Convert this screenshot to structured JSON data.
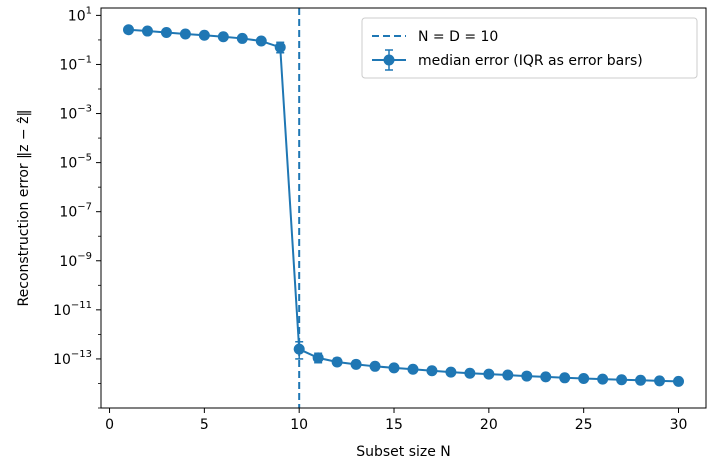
{
  "chart_data": {
    "type": "line",
    "xlabel": "Subset size N",
    "ylabel": "Reconstruction error ‖z − ẑ‖",
    "yscale": "log",
    "xlim": [
      -0.45,
      31.45
    ],
    "ylim": [
      1e-15,
      20
    ],
    "x_ticks": [
      0,
      5,
      10,
      15,
      20,
      25,
      30
    ],
    "y_tick_exponents": [
      1,
      -1,
      -3,
      -5,
      -7,
      -9,
      -11,
      -13
    ],
    "grid": false,
    "legend_position": "top-right",
    "vline": {
      "x": 10,
      "label": "N = D = 10",
      "style": "dashed"
    },
    "series": [
      {
        "name": "median error (IQR as error bars)",
        "color": "#1f77b4",
        "marker": "circle",
        "x": [
          1,
          2,
          3,
          4,
          5,
          6,
          7,
          8,
          9,
          10,
          11,
          12,
          13,
          14,
          15,
          16,
          17,
          18,
          19,
          20,
          21,
          22,
          23,
          24,
          25,
          26,
          27,
          28,
          29,
          30
        ],
        "y": [
          2.6,
          2.3,
          2.0,
          1.75,
          1.55,
          1.35,
          1.15,
          0.9,
          0.5,
          2.5e-13,
          1.1e-13,
          7.5e-14,
          6e-14,
          5e-14,
          4.3e-14,
          3.8e-14,
          3.3e-14,
          2.9e-14,
          2.6e-14,
          2.4e-14,
          2.2e-14,
          2e-14,
          1.85e-14,
          1.7e-14,
          1.6e-14,
          1.5e-14,
          1.42e-14,
          1.35e-14,
          1.28e-14,
          1.22e-14
        ],
        "err_low": [
          2.45,
          2.2,
          1.9,
          1.65,
          1.45,
          1.25,
          1.0,
          0.75,
          0.3,
          1e-13,
          7e-14,
          5.5e-14,
          4.5e-14,
          3.9e-14,
          3.4e-14,
          3e-14,
          2.6e-14,
          2.4e-14,
          2.15e-14,
          2e-14,
          1.85e-14,
          1.7e-14,
          1.6e-14,
          1.45e-14,
          1.38e-14,
          1.3e-14,
          1.22e-14,
          1.17e-14,
          1.1e-14,
          1.05e-14
        ],
        "err_high": [
          2.75,
          2.45,
          2.15,
          1.9,
          1.7,
          1.5,
          1.35,
          1.1,
          0.8,
          5e-13,
          1.7e-13,
          1.05e-13,
          8.2e-14,
          6.6e-14,
          5.5e-14,
          4.9e-14,
          4.2e-14,
          3.7e-14,
          3.3e-14,
          3e-14,
          2.7e-14,
          2.45e-14,
          2.25e-14,
          2.1e-14,
          1.95e-14,
          1.8e-14,
          1.7e-14,
          1.6e-14,
          1.5e-14,
          1.45e-14
        ]
      }
    ]
  }
}
